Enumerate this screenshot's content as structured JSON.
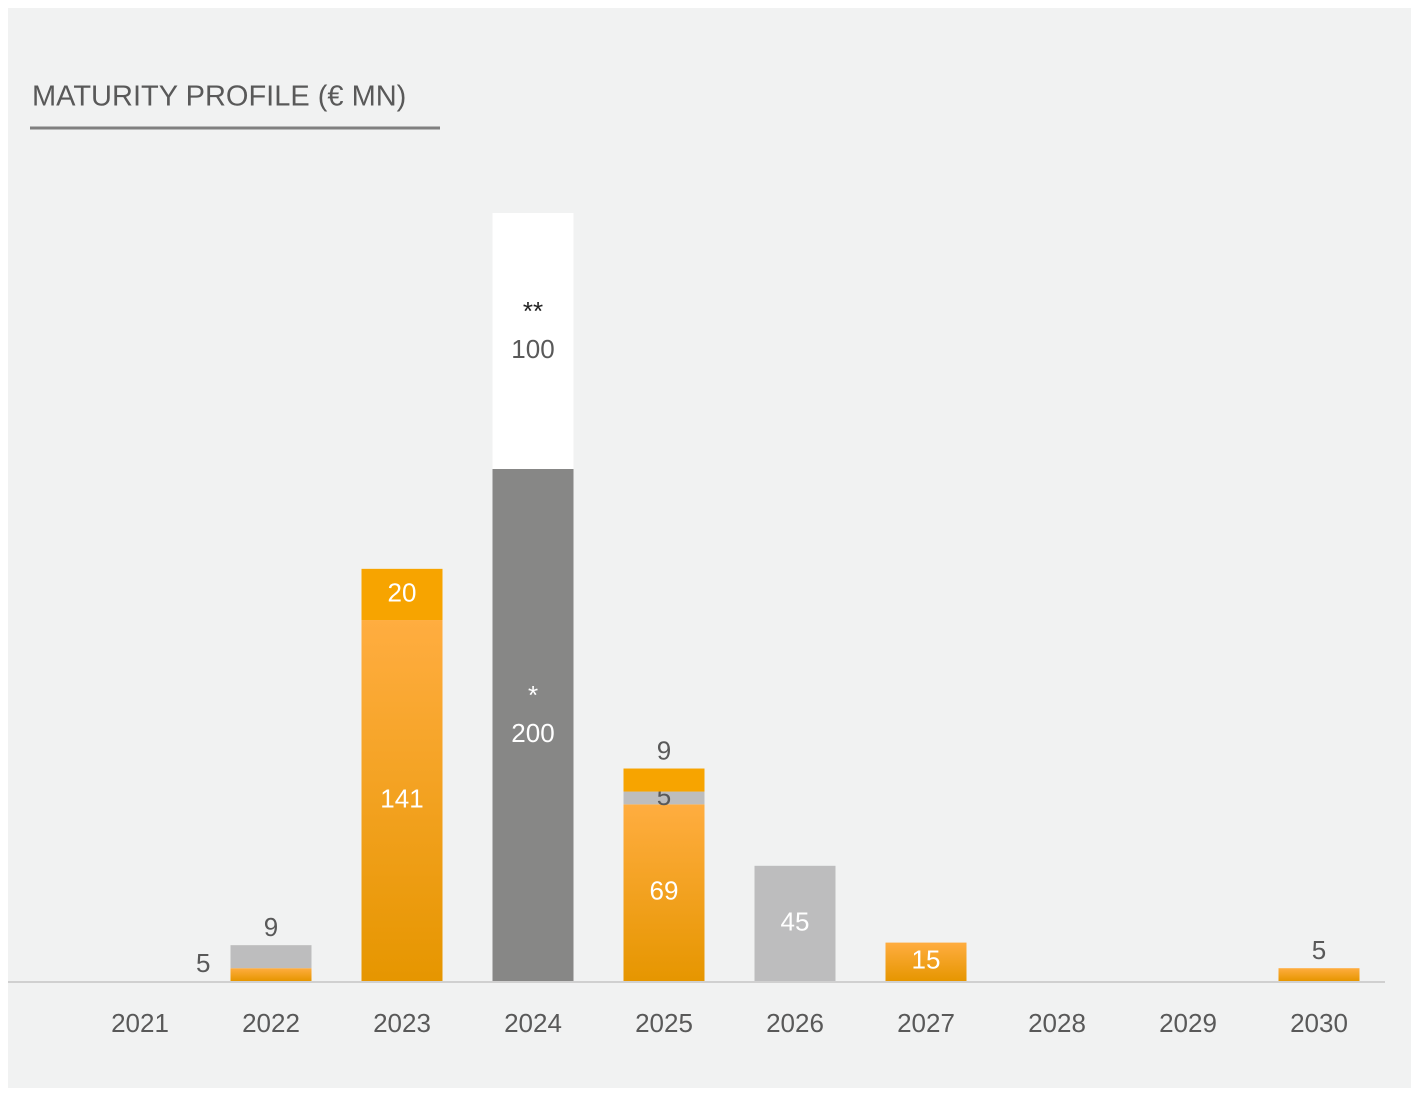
{
  "chart_data": {
    "type": "stacked-bar",
    "title": "MATURITY PROFILE (€ MN)",
    "categories": [
      "2021",
      "2022",
      "2023",
      "2024",
      "2025",
      "2026",
      "2027",
      "2028",
      "2029",
      "2030"
    ],
    "ylim": [
      0,
      300
    ],
    "series": [
      {
        "gradient": [
          "#ffad40",
          "#e69600"
        ],
        "values": [
          null,
          5,
          141,
          null,
          69,
          null,
          15,
          null,
          null,
          5
        ]
      },
      {
        "color": "#bdbdbe",
        "values": [
          null,
          9,
          null,
          null,
          5,
          45,
          null,
          null,
          null,
          null
        ]
      },
      {
        "color": "#f7a400",
        "values": [
          null,
          null,
          20,
          null,
          9,
          null,
          null,
          null,
          null,
          null
        ]
      },
      {
        "color": "#878786",
        "note": "*",
        "values": [
          null,
          null,
          null,
          200,
          null,
          null,
          null,
          null,
          null,
          null
        ]
      },
      {
        "color": "#ffffff",
        "note": "**",
        "values": [
          null,
          null,
          null,
          100,
          null,
          null,
          null,
          null,
          null,
          null
        ]
      }
    ]
  }
}
